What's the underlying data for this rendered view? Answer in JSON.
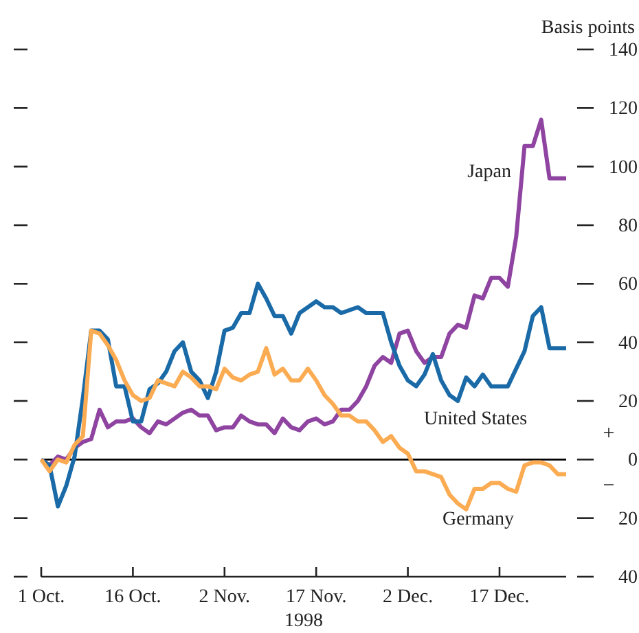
{
  "chart_data": {
    "type": "line",
    "xlabel": "1998",
    "ylabel": "Basis points",
    "categories": [
      "1 Oct.",
      null,
      null,
      null,
      null,
      null,
      null,
      null,
      null,
      null,
      null,
      "16 Oct.",
      null,
      null,
      null,
      null,
      null,
      null,
      null,
      null,
      null,
      null,
      "2 Nov.",
      null,
      null,
      null,
      null,
      null,
      null,
      null,
      null,
      null,
      null,
      "17 Nov.",
      null,
      null,
      null,
      null,
      null,
      null,
      null,
      null,
      null,
      null,
      "2 Dec.",
      null,
      null,
      null,
      null,
      null,
      null,
      null,
      null,
      null,
      null,
      "17 Dec.",
      null,
      null,
      null,
      null,
      null,
      null,
      null,
      null
    ],
    "series": [
      {
        "name": "Japan",
        "color": "#8e44a0",
        "values": [
          0,
          -2,
          1,
          0,
          4,
          6,
          7,
          17,
          11,
          13,
          13,
          14,
          11,
          9,
          13,
          12,
          14,
          16,
          17,
          15,
          15,
          10,
          11,
          11,
          15,
          13,
          12,
          12,
          9,
          14,
          11,
          10,
          13,
          14,
          12,
          13,
          17,
          17,
          20,
          25,
          32,
          35,
          33,
          43,
          44,
          37,
          33,
          35,
          35,
          43,
          46,
          45,
          56,
          55,
          62,
          62,
          59,
          76,
          107,
          107,
          116,
          96,
          96,
          96
        ]
      },
      {
        "name": "United States",
        "color": "#1a6aa8",
        "values": [
          0,
          -2,
          -16,
          -9,
          1,
          21,
          44,
          44,
          41,
          25,
          25,
          13,
          13,
          24,
          26,
          30,
          37,
          40,
          30,
          27,
          21,
          30,
          44,
          45,
          50,
          50,
          60,
          55,
          49,
          49,
          43,
          50,
          52,
          54,
          52,
          52,
          50,
          51,
          52,
          50,
          50,
          50,
          40,
          32,
          27,
          25,
          29,
          36,
          27,
          22,
          20,
          28,
          25,
          29,
          25,
          25,
          25,
          31,
          37,
          49,
          52,
          38,
          38,
          38
        ]
      },
      {
        "name": "Germany",
        "color": "#fbab52",
        "values": [
          0,
          -4,
          0,
          -1,
          5,
          8,
          44,
          43,
          39,
          34,
          27,
          22,
          20,
          21,
          27,
          26,
          25,
          30,
          28,
          25,
          25,
          24,
          31,
          28,
          27,
          29,
          30,
          38,
          29,
          31,
          27,
          27,
          31,
          27,
          22,
          19,
          15,
          15,
          13,
          13,
          10,
          6,
          8,
          4,
          2,
          -4,
          -4,
          -5,
          -6,
          -12,
          -15,
          -17,
          -10,
          -10,
          -8,
          -8,
          -10,
          -11,
          -2,
          -1,
          -1,
          -2,
          -5,
          -5
        ]
      }
    ],
    "ylim": [
      -40,
      140
    ],
    "yticks": [
      {
        "value": -40,
        "label": "40"
      },
      {
        "value": -20,
        "label": "20"
      },
      0,
      20,
      40,
      60,
      80,
      100,
      120,
      140
    ],
    "ref_lines": [
      {
        "axis": "y",
        "value": 0,
        "color": "#000000"
      }
    ],
    "annotations": [
      "+",
      "−"
    ],
    "grid": false,
    "legend": false,
    "marker": "none",
    "line_style": "solid"
  }
}
